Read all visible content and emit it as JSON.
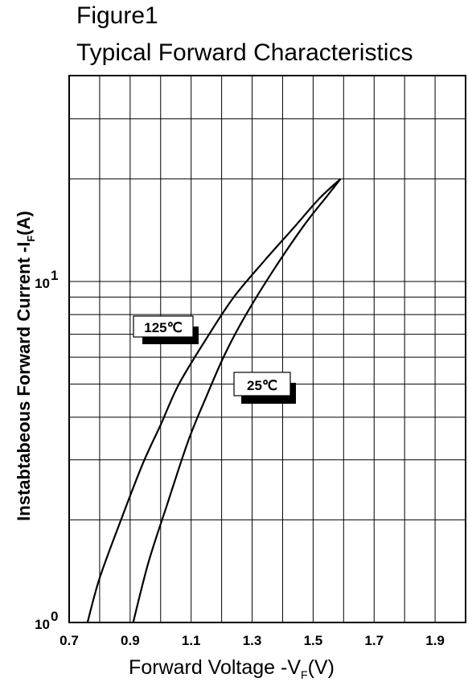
{
  "figure": {
    "title": "Figure1",
    "subtitle": "Typical Forward Characteristics"
  },
  "chart_data": {
    "type": "line",
    "title": "Typical Forward Characteristics",
    "xlabel": "Forward Voltage -V_F(V)",
    "xlabel_main": "Forward Voltage -V",
    "xlabel_sub": "F",
    "xlabel_end": "(V)",
    "ylabel_main": "Instabtabeous Forward Current -I",
    "ylabel_sub": "F",
    "ylabel_end": "(A)",
    "x_scale": "linear",
    "y_scale": "log",
    "xlim": [
      0.7,
      2.0
    ],
    "ylim": [
      1,
      30
    ],
    "grid": true,
    "x_ticks": [
      "0.7",
      "0.9",
      "1.1",
      "1.3",
      "1.5",
      "1.7",
      "1.9"
    ],
    "y_ticks": [
      {
        "base": "10",
        "exp": "0",
        "value": 1
      },
      {
        "base": "10",
        "exp": "1",
        "value": 10
      }
    ],
    "series": [
      {
        "name": "125℃",
        "color": "#000000",
        "x": [
          0.76,
          0.8,
          0.87,
          0.94,
          1.0,
          1.06,
          1.15,
          1.24,
          1.34,
          1.44,
          1.52,
          1.59
        ],
        "y": [
          1.0,
          1.35,
          2.0,
          2.9,
          3.8,
          5.0,
          6.8,
          9.0,
          11.5,
          14.5,
          17.5,
          20.0
        ]
      },
      {
        "name": "25℃",
        "color": "#000000",
        "x": [
          0.91,
          0.96,
          1.02,
          1.09,
          1.15,
          1.21,
          1.28,
          1.37,
          1.47,
          1.55,
          1.59
        ],
        "y": [
          1.0,
          1.5,
          2.2,
          3.4,
          4.6,
          6.1,
          8.0,
          10.8,
          14.6,
          18.0,
          20.0
        ]
      }
    ]
  }
}
